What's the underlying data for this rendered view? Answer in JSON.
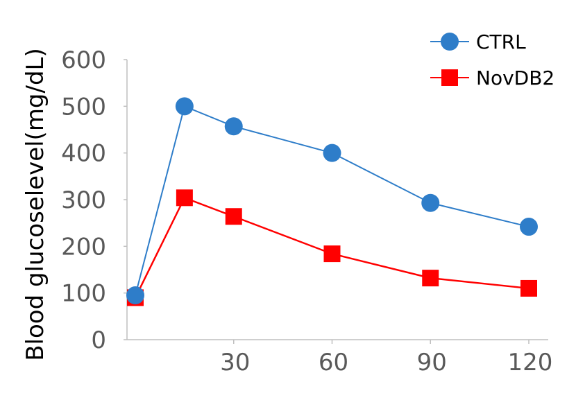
{
  "chart_data": {
    "type": "line",
    "title": "",
    "xlabel": "",
    "ylabel": "Blood glucoselevel(mg/dL)",
    "ylim": [
      0,
      600
    ],
    "xlim": [
      0,
      120
    ],
    "x_ticks": [
      30,
      60,
      90,
      120
    ],
    "y_ticks": [
      0,
      100,
      200,
      300,
      400,
      500,
      600
    ],
    "grid": false,
    "legend_position": "top-right",
    "series": [
      {
        "name": "CTRL",
        "color": "#2e7dc9",
        "marker": "circle",
        "points": [
          {
            "x": 0,
            "y": 95
          },
          {
            "x": 15,
            "y": 500
          },
          {
            "x": 30,
            "y": 457
          },
          {
            "x": 60,
            "y": 400
          },
          {
            "x": 90,
            "y": 293
          },
          {
            "x": 120,
            "y": 242
          }
        ]
      },
      {
        "name": "NovDB2",
        "color": "#ff0000",
        "marker": "square",
        "points": [
          {
            "x": 0,
            "y": 90
          },
          {
            "x": 15,
            "y": 304
          },
          {
            "x": 30,
            "y": 264
          },
          {
            "x": 60,
            "y": 184
          },
          {
            "x": 90,
            "y": 132
          },
          {
            "x": 120,
            "y": 110
          }
        ]
      }
    ]
  }
}
